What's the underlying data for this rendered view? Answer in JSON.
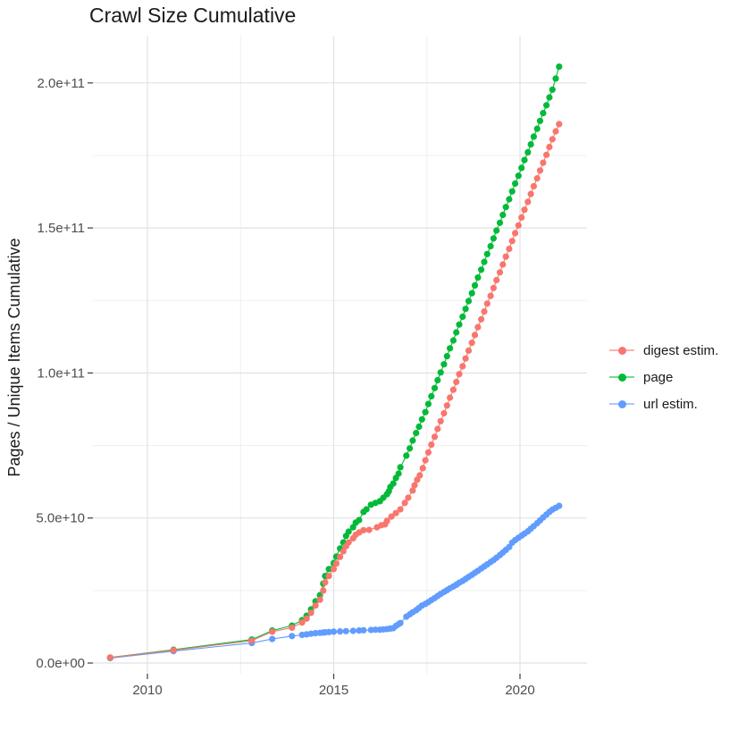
{
  "chart_data": {
    "type": "scatter",
    "title": "Crawl Size Cumulative",
    "xlabel": "",
    "ylabel": "Pages / Unique Items Cumulative",
    "values_unit": "billions (1e9) of pages / unique items",
    "grid": true,
    "legend_position": "right",
    "xlim": [
      2008.54,
      2021.8
    ],
    "ylim_e9": [
      -3.7,
      216
    ],
    "x_ticks": [
      {
        "label": "2010",
        "year": 2010
      },
      {
        "label": "2015",
        "year": 2015
      },
      {
        "label": "2020",
        "year": 2020
      }
    ],
    "x_minor": [
      2012.5,
      2017.5
    ],
    "y_ticks": [
      {
        "label": "0.0e+00",
        "e9": 0
      },
      {
        "label": "5.0e+10",
        "e9": 50
      },
      {
        "label": "1.0e+11",
        "e9": 100
      },
      {
        "label": "1.5e+11",
        "e9": 150
      },
      {
        "label": "2.0e+11",
        "e9": 200
      }
    ],
    "y_minor": [
      25,
      75,
      125,
      175
    ],
    "series": [
      {
        "name": "digest estim.",
        "color": "#F8766D",
        "points": [
          [
            2009.0,
            1.9
          ],
          [
            2010.7,
            4.4
          ],
          [
            2012.8,
            7.7
          ],
          [
            2013.35,
            10.8
          ],
          [
            2013.88,
            12.2
          ],
          [
            2014.15,
            14.0
          ],
          [
            2014.27,
            15.3
          ],
          [
            2014.39,
            17.3
          ],
          [
            2014.51,
            19.8
          ],
          [
            2014.63,
            21.8
          ],
          [
            2014.72,
            25.0
          ],
          [
            2014.77,
            27.8
          ],
          [
            2014.87,
            30.0
          ],
          [
            2015.0,
            32.4
          ],
          [
            2015.07,
            34.3
          ],
          [
            2015.17,
            36.6
          ],
          [
            2015.26,
            38.5
          ],
          [
            2015.33,
            40.3
          ],
          [
            2015.4,
            41.6
          ],
          [
            2015.52,
            43.0
          ],
          [
            2015.59,
            44.2
          ],
          [
            2015.68,
            45.0
          ],
          [
            2015.8,
            45.8
          ],
          [
            2015.95,
            45.9
          ],
          [
            2016.16,
            46.8
          ],
          [
            2016.28,
            47.5
          ],
          [
            2016.38,
            47.8
          ],
          [
            2016.43,
            49.0
          ],
          [
            2016.55,
            50.5
          ],
          [
            2016.67,
            51.7
          ],
          [
            2016.79,
            53.0
          ],
          [
            2016.91,
            55.2
          ],
          [
            2017.0,
            57.0
          ],
          [
            2017.12,
            59.5
          ],
          [
            2017.17,
            61.3
          ],
          [
            2017.24,
            63.2
          ],
          [
            2017.31,
            64.7
          ],
          [
            2017.39,
            67.2
          ],
          [
            2017.46,
            69.9
          ],
          [
            2017.54,
            72.6
          ],
          [
            2017.62,
            75.3
          ],
          [
            2017.71,
            78.0
          ],
          [
            2017.79,
            80.7
          ],
          [
            2017.87,
            83.4
          ],
          [
            2017.96,
            86.1
          ],
          [
            2018.04,
            88.8
          ],
          [
            2018.12,
            91.5
          ],
          [
            2018.21,
            94.2
          ],
          [
            2018.29,
            96.9
          ],
          [
            2018.37,
            99.6
          ],
          [
            2018.46,
            102.3
          ],
          [
            2018.54,
            105.0
          ],
          [
            2018.62,
            107.7
          ],
          [
            2018.71,
            110.4
          ],
          [
            2018.79,
            113.1
          ],
          [
            2018.87,
            115.8
          ],
          [
            2018.96,
            118.5
          ],
          [
            2019.04,
            121.2
          ],
          [
            2019.12,
            123.9
          ],
          [
            2019.21,
            126.6
          ],
          [
            2019.29,
            129.3
          ],
          [
            2019.37,
            132.0
          ],
          [
            2019.46,
            134.7
          ],
          [
            2019.54,
            137.4
          ],
          [
            2019.62,
            140.1
          ],
          [
            2019.71,
            142.8
          ],
          [
            2019.79,
            145.5
          ],
          [
            2019.87,
            148.2
          ],
          [
            2019.96,
            150.9
          ],
          [
            2020.04,
            153.6
          ],
          [
            2020.12,
            156.3
          ],
          [
            2020.21,
            159.0
          ],
          [
            2020.29,
            161.7
          ],
          [
            2020.37,
            164.4
          ],
          [
            2020.46,
            167.1
          ],
          [
            2020.54,
            169.8
          ],
          [
            2020.62,
            172.5
          ],
          [
            2020.71,
            175.2
          ],
          [
            2020.79,
            177.9
          ],
          [
            2020.87,
            180.6
          ],
          [
            2020.96,
            183.3
          ],
          [
            2021.05,
            185.8
          ]
        ]
      },
      {
        "name": "page",
        "color": "#00BA38",
        "points": [
          [
            2009.0,
            1.9
          ],
          [
            2010.7,
            4.6
          ],
          [
            2012.8,
            8.1
          ],
          [
            2013.35,
            11.2
          ],
          [
            2013.88,
            12.9
          ],
          [
            2014.15,
            14.8
          ],
          [
            2014.27,
            16.3
          ],
          [
            2014.39,
            18.5
          ],
          [
            2014.51,
            21.3
          ],
          [
            2014.63,
            23.4
          ],
          [
            2014.72,
            27.4
          ],
          [
            2014.77,
            30.0
          ],
          [
            2014.87,
            32.4
          ],
          [
            2015.0,
            34.5
          ],
          [
            2015.07,
            36.7
          ],
          [
            2015.17,
            39.5
          ],
          [
            2015.26,
            41.6
          ],
          [
            2015.33,
            43.8
          ],
          [
            2015.4,
            45.3
          ],
          [
            2015.52,
            46.8
          ],
          [
            2015.59,
            48.4
          ],
          [
            2015.68,
            49.3
          ],
          [
            2015.8,
            52.1
          ],
          [
            2015.88,
            53.0
          ],
          [
            2016.0,
            54.6
          ],
          [
            2016.12,
            55.2
          ],
          [
            2016.24,
            55.8
          ],
          [
            2016.33,
            57.0
          ],
          [
            2016.43,
            58.2
          ],
          [
            2016.48,
            59.2
          ],
          [
            2016.52,
            60.7
          ],
          [
            2016.6,
            61.9
          ],
          [
            2016.67,
            63.8
          ],
          [
            2016.74,
            65.3
          ],
          [
            2016.79,
            67.5
          ],
          [
            2016.95,
            71.5
          ],
          [
            2017.04,
            74.0
          ],
          [
            2017.12,
            76.7
          ],
          [
            2017.21,
            79.3
          ],
          [
            2017.29,
            81.5
          ],
          [
            2017.37,
            84.0
          ],
          [
            2017.46,
            86.5
          ],
          [
            2017.54,
            89.3
          ],
          [
            2017.62,
            92.0
          ],
          [
            2017.71,
            94.8
          ],
          [
            2017.79,
            97.5
          ],
          [
            2017.87,
            100.2
          ],
          [
            2017.96,
            103.0
          ],
          [
            2018.04,
            105.8
          ],
          [
            2018.12,
            108.5
          ],
          [
            2018.21,
            111.2
          ],
          [
            2018.29,
            114.0
          ],
          [
            2018.37,
            116.7
          ],
          [
            2018.46,
            119.4
          ],
          [
            2018.54,
            122.1
          ],
          [
            2018.62,
            124.8
          ],
          [
            2018.71,
            127.5
          ],
          [
            2018.79,
            130.2
          ],
          [
            2018.87,
            132.9
          ],
          [
            2018.96,
            135.6
          ],
          [
            2019.04,
            138.3
          ],
          [
            2019.12,
            141.0
          ],
          [
            2019.21,
            143.7
          ],
          [
            2019.29,
            146.4
          ],
          [
            2019.37,
            149.1
          ],
          [
            2019.46,
            151.8
          ],
          [
            2019.54,
            154.5
          ],
          [
            2019.62,
            157.2
          ],
          [
            2019.71,
            159.9
          ],
          [
            2019.79,
            162.6
          ],
          [
            2019.87,
            165.3
          ],
          [
            2019.96,
            168.0
          ],
          [
            2020.04,
            170.7
          ],
          [
            2020.12,
            173.4
          ],
          [
            2020.21,
            176.1
          ],
          [
            2020.29,
            178.8
          ],
          [
            2020.37,
            181.5
          ],
          [
            2020.46,
            184.2
          ],
          [
            2020.54,
            186.9
          ],
          [
            2020.62,
            189.6
          ],
          [
            2020.71,
            192.3
          ],
          [
            2020.79,
            195.0
          ],
          [
            2020.87,
            197.7
          ],
          [
            2020.96,
            201.5
          ],
          [
            2021.05,
            205.6
          ]
        ]
      },
      {
        "name": "url estim.",
        "color": "#619CFF",
        "points": [
          [
            2009.0,
            1.7
          ],
          [
            2010.7,
            4.1
          ],
          [
            2012.8,
            6.9
          ],
          [
            2013.35,
            8.3
          ],
          [
            2013.88,
            9.3
          ],
          [
            2014.15,
            9.7
          ],
          [
            2014.27,
            9.9
          ],
          [
            2014.39,
            10.1
          ],
          [
            2014.51,
            10.3
          ],
          [
            2014.63,
            10.4
          ],
          [
            2014.72,
            10.5
          ],
          [
            2014.77,
            10.6
          ],
          [
            2014.87,
            10.7
          ],
          [
            2015.0,
            10.8
          ],
          [
            2015.17,
            10.9
          ],
          [
            2015.33,
            11.0
          ],
          [
            2015.52,
            11.1
          ],
          [
            2015.68,
            11.2
          ],
          [
            2015.8,
            11.3
          ],
          [
            2016.0,
            11.4
          ],
          [
            2016.12,
            11.5
          ],
          [
            2016.24,
            11.5
          ],
          [
            2016.33,
            11.6
          ],
          [
            2016.43,
            11.7
          ],
          [
            2016.52,
            11.9
          ],
          [
            2016.6,
            12.0
          ],
          [
            2016.67,
            12.8
          ],
          [
            2016.74,
            13.4
          ],
          [
            2016.79,
            13.8
          ],
          [
            2016.95,
            16.0
          ],
          [
            2017.04,
            16.8
          ],
          [
            2017.12,
            17.5
          ],
          [
            2017.21,
            18.2
          ],
          [
            2017.29,
            19.0
          ],
          [
            2017.37,
            19.8
          ],
          [
            2017.46,
            20.4
          ],
          [
            2017.54,
            21.0
          ],
          [
            2017.62,
            21.7
          ],
          [
            2017.71,
            22.4
          ],
          [
            2017.79,
            23.1
          ],
          [
            2017.87,
            23.8
          ],
          [
            2017.96,
            24.5
          ],
          [
            2018.04,
            25.1
          ],
          [
            2018.12,
            25.8
          ],
          [
            2018.21,
            26.4
          ],
          [
            2018.29,
            27.0
          ],
          [
            2018.37,
            27.7
          ],
          [
            2018.46,
            28.3
          ],
          [
            2018.54,
            29.0
          ],
          [
            2018.62,
            29.7
          ],
          [
            2018.71,
            30.4
          ],
          [
            2018.79,
            31.1
          ],
          [
            2018.87,
            31.8
          ],
          [
            2018.96,
            32.6
          ],
          [
            2019.04,
            33.3
          ],
          [
            2019.12,
            34.0
          ],
          [
            2019.21,
            34.8
          ],
          [
            2019.29,
            35.5
          ],
          [
            2019.37,
            36.3
          ],
          [
            2019.46,
            37.2
          ],
          [
            2019.54,
            38.1
          ],
          [
            2019.62,
            39.0
          ],
          [
            2019.71,
            40.0
          ],
          [
            2019.79,
            41.5
          ],
          [
            2019.87,
            42.4
          ],
          [
            2019.96,
            43.2
          ],
          [
            2020.04,
            43.9
          ],
          [
            2020.12,
            44.6
          ],
          [
            2020.21,
            45.4
          ],
          [
            2020.29,
            46.3
          ],
          [
            2020.37,
            47.2
          ],
          [
            2020.46,
            48.2
          ],
          [
            2020.54,
            49.2
          ],
          [
            2020.62,
            50.2
          ],
          [
            2020.71,
            51.2
          ],
          [
            2020.79,
            52.1
          ],
          [
            2020.87,
            52.9
          ],
          [
            2020.96,
            53.5
          ],
          [
            2021.05,
            54.2
          ]
        ]
      }
    ]
  }
}
